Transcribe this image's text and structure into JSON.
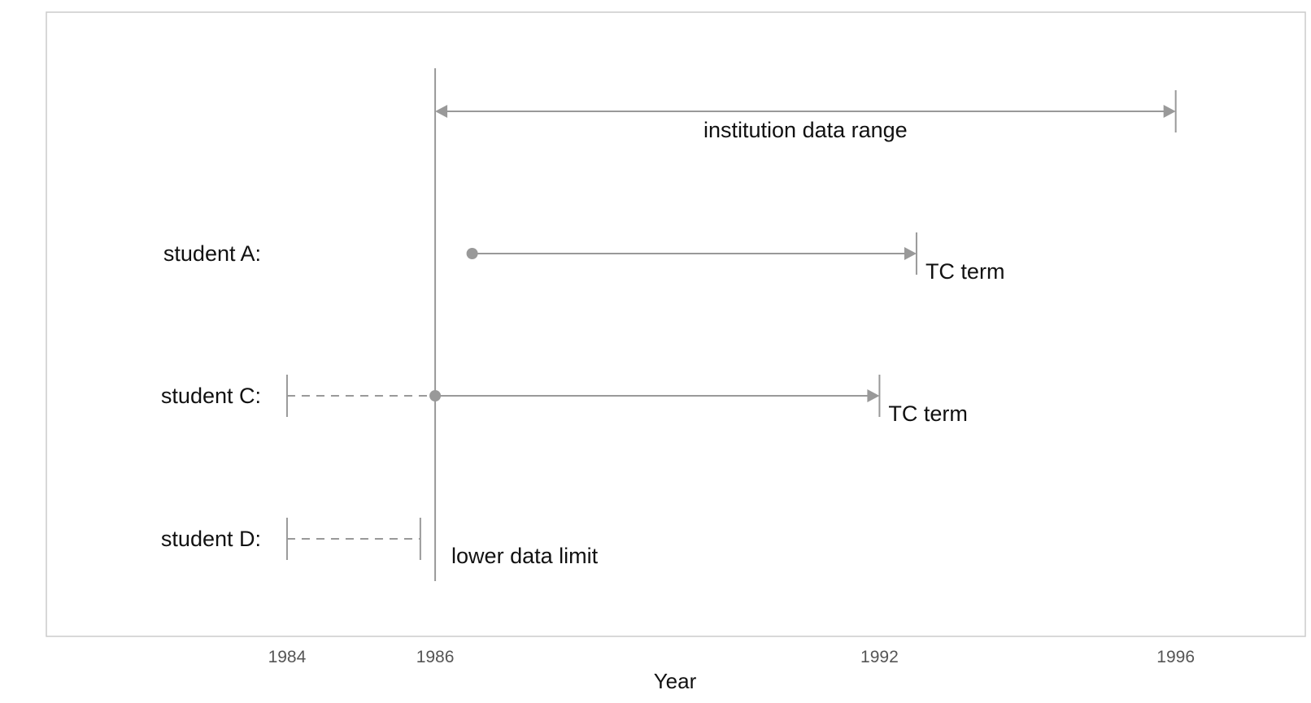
{
  "chart_data": {
    "type": "timeline",
    "xlabel": "Year",
    "xlim": [
      1980.75,
      1997.75
    ],
    "x_ticks": [
      1984,
      1986,
      1992,
      1996
    ],
    "grid": false,
    "colors": {
      "line": "#999999",
      "frame": "#cccccc",
      "text": "#111111",
      "tick_text": "#555555"
    },
    "range_annotation": {
      "label": "institution data range",
      "start": 1986,
      "end": 1996
    },
    "lower_limit": {
      "label": "lower data limit",
      "x": 1986
    },
    "rows": [
      {
        "label": "student A:",
        "dashed": null,
        "solid": {
          "start": 1986.5,
          "end": 1992.5,
          "start_marker": "dot",
          "end_marker": "arrow-bar"
        },
        "end_label": "TC term"
      },
      {
        "label": "student C:",
        "dashed": {
          "start": 1984,
          "end": 1986,
          "start_marker": "bar"
        },
        "solid": {
          "start": 1986,
          "end": 1992,
          "start_marker": "dot",
          "end_marker": "arrow-bar"
        },
        "end_label": "TC term"
      },
      {
        "label": "student D:",
        "dashed": {
          "start": 1984,
          "end": 1985.8,
          "start_marker": "bar",
          "end_marker": "bar"
        },
        "solid": null,
        "end_label": ""
      }
    ]
  }
}
